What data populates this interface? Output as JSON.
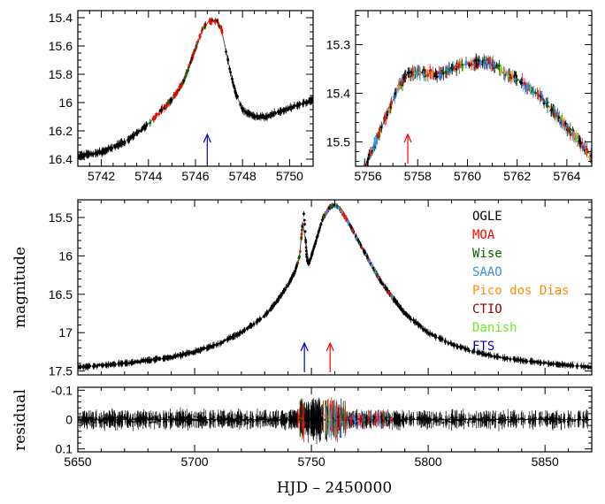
{
  "chart_data": [
    {
      "type": "scatter",
      "panel": "zoom-left",
      "xlim": [
        5741,
        5751
      ],
      "ylim": [
        16.45,
        15.35
      ],
      "y_inverted": true,
      "xticks": [
        "5742",
        "5744",
        "5746",
        "5748",
        "5750"
      ],
      "yticks": [
        "15.4",
        "15.6",
        "15.8",
        "16",
        "16.2",
        "16.4"
      ],
      "arrow": {
        "x": 5746.5,
        "color": "#0000cc"
      },
      "model_curve": [
        [
          5741.0,
          16.38
        ],
        [
          5742.0,
          16.35
        ],
        [
          5743.0,
          16.28
        ],
        [
          5744.0,
          16.15
        ],
        [
          5745.0,
          15.98
        ],
        [
          5745.5,
          15.85
        ],
        [
          5746.0,
          15.62
        ],
        [
          5746.3,
          15.48
        ],
        [
          5746.6,
          15.42
        ],
        [
          5746.9,
          15.42
        ],
        [
          5747.1,
          15.48
        ],
        [
          5747.4,
          15.72
        ],
        [
          5747.7,
          15.93
        ],
        [
          5748.0,
          16.05
        ],
        [
          5748.5,
          16.1
        ],
        [
          5749.0,
          16.1
        ],
        [
          5750.0,
          16.04
        ],
        [
          5751.0,
          15.98
        ]
      ]
    },
    {
      "type": "scatter",
      "panel": "zoom-right",
      "xlim": [
        5755.5,
        5765
      ],
      "ylim": [
        15.55,
        15.23
      ],
      "y_inverted": true,
      "xticks": [
        "5756",
        "5758",
        "5760",
        "5762",
        "5764"
      ],
      "yticks": [
        "15.3",
        "15.4",
        "15.5"
      ],
      "arrow": {
        "x": 5757.6,
        "color": "#ff0000"
      },
      "model_curve": [
        [
          5755.7,
          15.57
        ],
        [
          5756.3,
          15.5
        ],
        [
          5756.8,
          15.44
        ],
        [
          5757.2,
          15.39
        ],
        [
          5757.6,
          15.36
        ],
        [
          5758.0,
          15.355
        ],
        [
          5758.5,
          15.36
        ],
        [
          5759.0,
          15.36
        ],
        [
          5759.5,
          15.345
        ],
        [
          5760.0,
          15.34
        ],
        [
          5760.5,
          15.335
        ],
        [
          5761.0,
          15.34
        ],
        [
          5761.5,
          15.36
        ],
        [
          5762.0,
          15.37
        ],
        [
          5762.5,
          15.39
        ],
        [
          5763.0,
          15.41
        ],
        [
          5763.5,
          15.44
        ],
        [
          5764.0,
          15.47
        ],
        [
          5764.5,
          15.5
        ],
        [
          5765.0,
          15.53
        ]
      ]
    },
    {
      "type": "scatter",
      "panel": "main-lightcurve",
      "ylabel": "magnitude",
      "xlim": [
        5650,
        5870
      ],
      "ylim": [
        17.55,
        15.27
      ],
      "y_inverted": true,
      "yticks": [
        "15.5",
        "16",
        "16.5",
        "17",
        "17.5"
      ],
      "arrows": [
        {
          "x": 5747,
          "color": "#0000cc"
        },
        {
          "x": 5758,
          "color": "#ff0000"
        }
      ],
      "legend": [
        {
          "name": "OGLE",
          "color": "#000000"
        },
        {
          "name": "MOA",
          "color": "#ff0000"
        },
        {
          "name": "Wise",
          "color": "#006400"
        },
        {
          "name": "SAAO",
          "color": "#3a8ee6"
        },
        {
          "name": "Pico dos Dias",
          "color": "#ff8c00"
        },
        {
          "name": "CTIO",
          "color": "#8b0000"
        },
        {
          "name": "Danish",
          "color": "#66ee22"
        },
        {
          "name": "FTS",
          "color": "#0000aa"
        }
      ],
      "legend_position": "right",
      "model_curve": [
        [
          5650,
          17.45
        ],
        [
          5670,
          17.4
        ],
        [
          5690,
          17.32
        ],
        [
          5700,
          17.25
        ],
        [
          5710,
          17.15
        ],
        [
          5720,
          17.0
        ],
        [
          5730,
          16.78
        ],
        [
          5735,
          16.6
        ],
        [
          5740,
          16.38
        ],
        [
          5743,
          16.2
        ],
        [
          5745,
          16.0
        ],
        [
          5746,
          15.65
        ],
        [
          5746.6,
          15.42
        ],
        [
          5747.2,
          15.6
        ],
        [
          5748,
          16.05
        ],
        [
          5749,
          16.1
        ],
        [
          5750,
          16.0
        ],
        [
          5752,
          15.8
        ],
        [
          5755,
          15.5
        ],
        [
          5758,
          15.36
        ],
        [
          5760,
          15.34
        ],
        [
          5762,
          15.38
        ],
        [
          5765,
          15.52
        ],
        [
          5770,
          15.8
        ],
        [
          5775,
          16.08
        ],
        [
          5780,
          16.35
        ],
        [
          5785,
          16.55
        ],
        [
          5790,
          16.75
        ],
        [
          5800,
          17.0
        ],
        [
          5810,
          17.15
        ],
        [
          5820,
          17.25
        ],
        [
          5830,
          17.32
        ],
        [
          5850,
          17.4
        ],
        [
          5870,
          17.45
        ]
      ]
    },
    {
      "type": "scatter",
      "panel": "residuals",
      "xlabel": "HJD – 2450000",
      "ylabel": "residual",
      "xlim": [
        5650,
        5870
      ],
      "ylim": [
        0.11,
        -0.11
      ],
      "xticks": [
        "5650",
        "5700",
        "5750",
        "5800",
        "5850"
      ],
      "yticks": [
        "-0.1",
        "0",
        "0.1"
      ]
    }
  ]
}
